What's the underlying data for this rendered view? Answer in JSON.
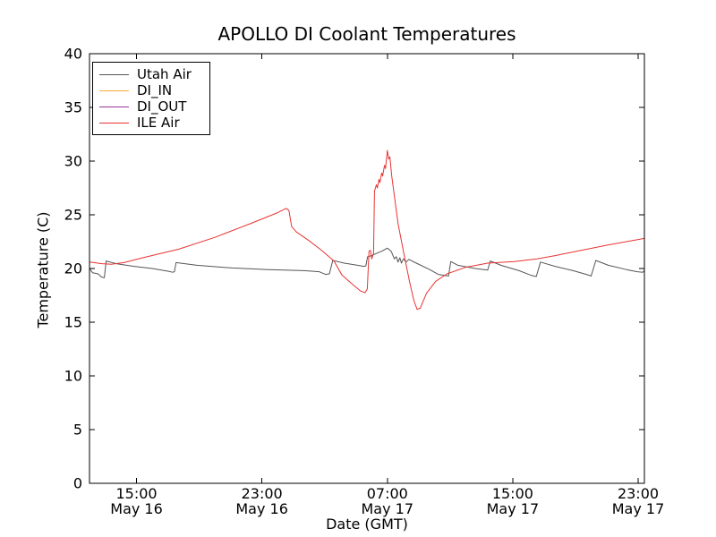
{
  "figure": {
    "background": "#ffffff",
    "frame_color": "#000000",
    "text_color": "#000000"
  },
  "chart_data": {
    "type": "line",
    "title": "APOLLO DI Coolant Temperatures",
    "xlabel": "Date (GMT)",
    "ylabel": "Temperature (C)",
    "grid": false,
    "legend_position": "upper-left",
    "xlim": [
      0,
      35.4
    ],
    "ylim": [
      0,
      40
    ],
    "yticks": [
      0,
      5,
      10,
      15,
      20,
      25,
      30,
      35,
      40
    ],
    "xticks": [
      {
        "pos": 3,
        "time": "15:00",
        "date": "May 16"
      },
      {
        "pos": 11,
        "time": "23:00",
        "date": "May 16"
      },
      {
        "pos": 19,
        "time": "07:00",
        "date": "May 17"
      },
      {
        "pos": 27,
        "time": "15:00",
        "date": "May 17"
      },
      {
        "pos": 35,
        "time": "23:00",
        "date": "May 17"
      }
    ],
    "x_axis_note": "pos = hours after May 16 12:00 GMT",
    "series": [
      {
        "name": "Utah Air",
        "color": "#555555",
        "points": [
          [
            0,
            20.0
          ],
          [
            0.2,
            19.6
          ],
          [
            0.55,
            19.5
          ],
          [
            0.77,
            19.2
          ],
          [
            0.95,
            19.15
          ],
          [
            1.06,
            20.7
          ],
          [
            1.7,
            20.45
          ],
          [
            2.85,
            20.2
          ],
          [
            4.0,
            20.0
          ],
          [
            5.0,
            19.75
          ],
          [
            5.3,
            19.65
          ],
          [
            5.42,
            19.7
          ],
          [
            5.52,
            20.55
          ],
          [
            6.85,
            20.3
          ],
          [
            9.1,
            20.05
          ],
          [
            11.4,
            19.9
          ],
          [
            13.7,
            19.8
          ],
          [
            14.65,
            19.7
          ],
          [
            15.05,
            19.45
          ],
          [
            15.3,
            19.5
          ],
          [
            15.52,
            20.75
          ],
          [
            16.25,
            20.5
          ],
          [
            17.1,
            20.3
          ],
          [
            17.5,
            20.2
          ],
          [
            17.63,
            20.25
          ],
          [
            17.74,
            21.1
          ],
          [
            18.0,
            21.2
          ],
          [
            18.3,
            21.4
          ],
          [
            18.7,
            21.65
          ],
          [
            19.0,
            21.9
          ],
          [
            19.25,
            21.6
          ],
          [
            19.45,
            20.9
          ],
          [
            19.57,
            21.1
          ],
          [
            19.68,
            20.6
          ],
          [
            19.8,
            21.0
          ],
          [
            19.9,
            20.5
          ],
          [
            20.03,
            20.9
          ],
          [
            20.2,
            20.6
          ],
          [
            20.37,
            20.85
          ],
          [
            20.85,
            20.5
          ],
          [
            21.7,
            19.9
          ],
          [
            22.25,
            19.45
          ],
          [
            22.9,
            19.3
          ],
          [
            23.05,
            20.65
          ],
          [
            23.5,
            20.3
          ],
          [
            24.6,
            20.0
          ],
          [
            25.4,
            19.85
          ],
          [
            25.57,
            20.7
          ],
          [
            26.25,
            20.3
          ],
          [
            27.4,
            19.8
          ],
          [
            28.2,
            19.35
          ],
          [
            28.5,
            19.25
          ],
          [
            28.77,
            20.6
          ],
          [
            29.7,
            20.2
          ],
          [
            30.85,
            19.8
          ],
          [
            31.7,
            19.45
          ],
          [
            32.0,
            19.3
          ],
          [
            32.3,
            20.75
          ],
          [
            33.1,
            20.3
          ],
          [
            34.25,
            19.9
          ],
          [
            34.95,
            19.7
          ],
          [
            35.3,
            19.65
          ],
          [
            35.4,
            19.8
          ]
        ]
      },
      {
        "name": "DI_IN",
        "color": "#ffaa33",
        "points": []
      },
      {
        "name": "DI_OUT",
        "color": "#993399",
        "points": []
      },
      {
        "name": "ILE Air",
        "color": "#e83333",
        "points": [
          [
            0,
            20.6
          ],
          [
            0.8,
            20.45
          ],
          [
            1.4,
            20.4
          ],
          [
            2.2,
            20.55
          ],
          [
            3.4,
            21.0
          ],
          [
            5.7,
            21.8
          ],
          [
            8.0,
            22.9
          ],
          [
            10.3,
            24.2
          ],
          [
            12.0,
            25.2
          ],
          [
            12.55,
            25.6
          ],
          [
            12.72,
            25.4
          ],
          [
            12.9,
            23.9
          ],
          [
            13.2,
            23.4
          ],
          [
            14.0,
            22.6
          ],
          [
            14.8,
            21.7
          ],
          [
            15.6,
            20.7
          ],
          [
            16.1,
            19.4
          ],
          [
            16.8,
            18.5
          ],
          [
            17.3,
            17.9
          ],
          [
            17.58,
            17.75
          ],
          [
            17.72,
            18.1
          ],
          [
            17.83,
            21.6
          ],
          [
            17.92,
            21.7
          ],
          [
            18.0,
            20.9
          ],
          [
            18.12,
            21.4
          ],
          [
            18.18,
            27.2
          ],
          [
            18.3,
            27.8
          ],
          [
            18.36,
            27.5
          ],
          [
            18.47,
            28.3
          ],
          [
            18.53,
            28.0
          ],
          [
            18.64,
            28.9
          ],
          [
            18.7,
            28.6
          ],
          [
            18.82,
            29.6
          ],
          [
            18.88,
            29.3
          ],
          [
            19.0,
            31.0
          ],
          [
            19.08,
            30.2
          ],
          [
            19.16,
            30.4
          ],
          [
            19.28,
            28.6
          ],
          [
            19.68,
            24.2
          ],
          [
            20.08,
            21.2
          ],
          [
            20.43,
            18.7
          ],
          [
            20.7,
            17.0
          ],
          [
            20.9,
            16.2
          ],
          [
            21.1,
            16.3
          ],
          [
            21.5,
            17.7
          ],
          [
            22.08,
            18.8
          ],
          [
            22.8,
            19.5
          ],
          [
            23.97,
            20.1
          ],
          [
            25.4,
            20.5
          ],
          [
            27.1,
            20.65
          ],
          [
            28.55,
            20.9
          ],
          [
            29.7,
            21.2
          ],
          [
            31.4,
            21.7
          ],
          [
            33.1,
            22.2
          ],
          [
            35.4,
            22.8
          ]
        ]
      }
    ]
  }
}
